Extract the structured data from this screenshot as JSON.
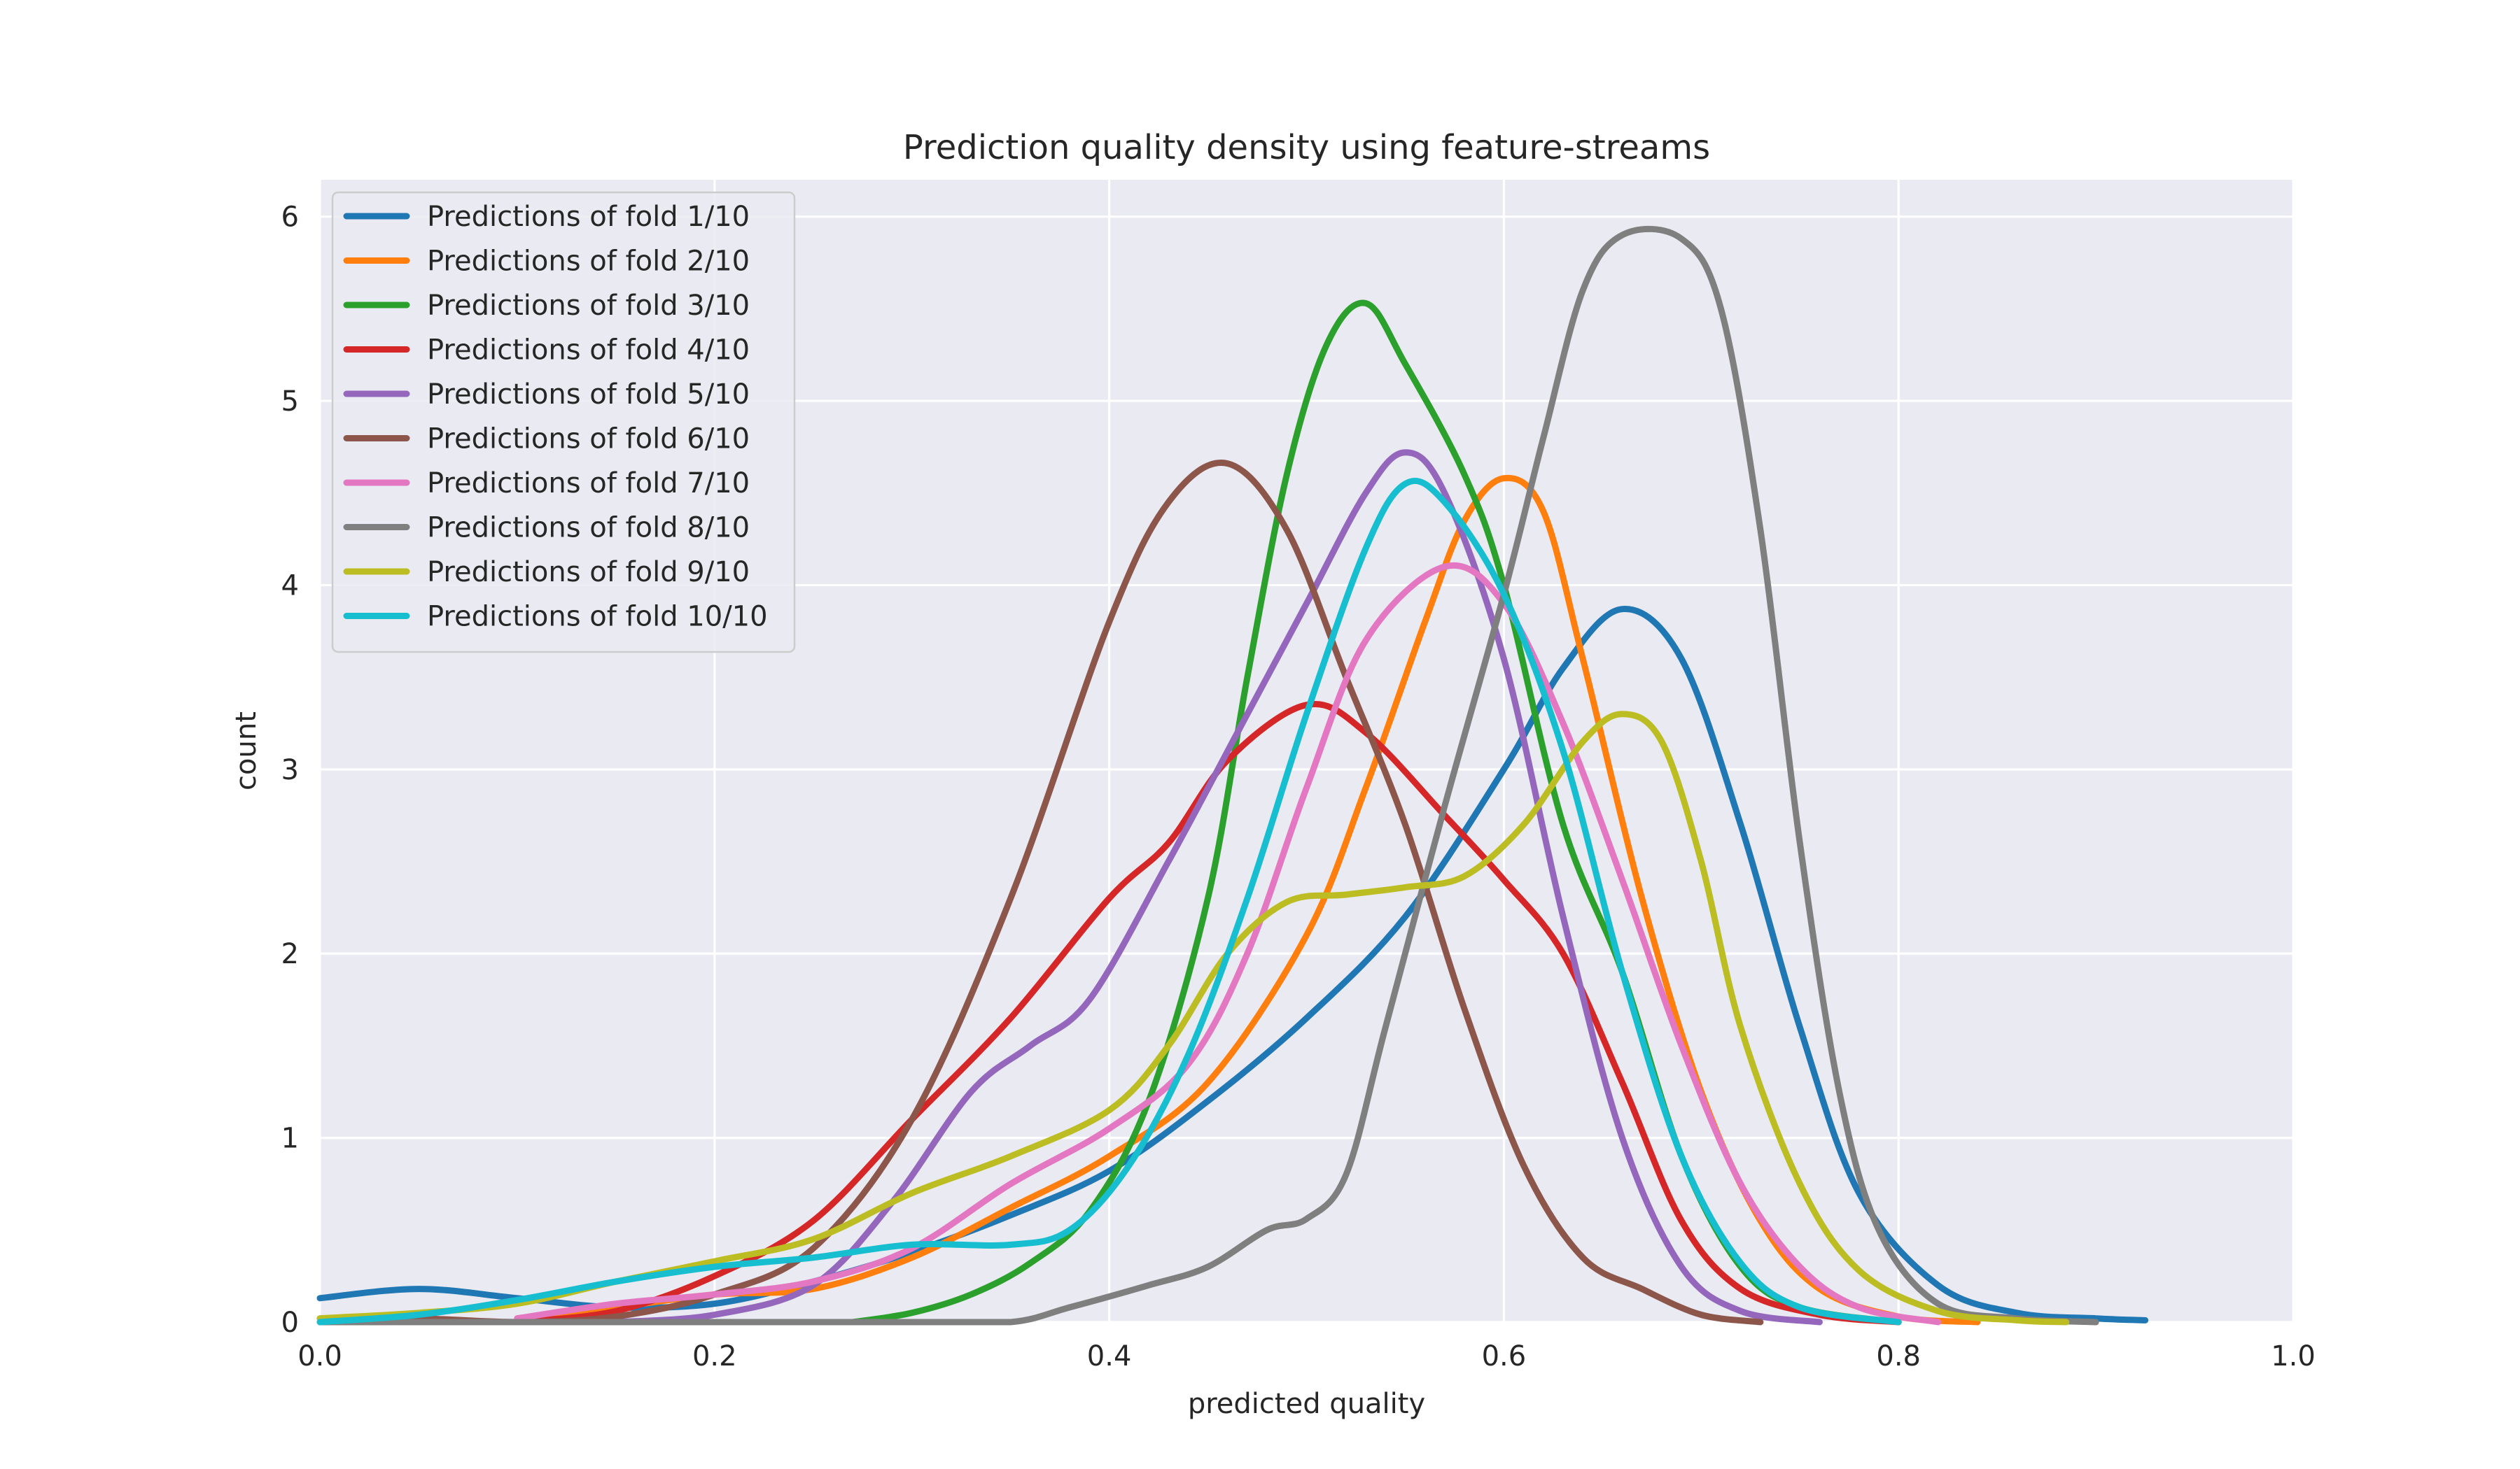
{
  "chart_data": {
    "type": "line",
    "title": "Prediction quality density using feature-streams",
    "xlabel": "predicted quality",
    "ylabel": "count",
    "xlim": [
      0.0,
      1.0
    ],
    "ylim": [
      0,
      6.2
    ],
    "xticks": [
      0.0,
      0.2,
      0.4,
      0.6,
      0.8,
      1.0
    ],
    "xtick_labels": [
      "0.0",
      "0.2",
      "0.4",
      "0.6",
      "0.8",
      "1.0"
    ],
    "yticks": [
      0,
      1,
      2,
      3,
      4,
      5,
      6
    ],
    "ytick_labels": [
      "0",
      "1",
      "2",
      "3",
      "4",
      "5",
      "6"
    ],
    "grid": true,
    "legend_position": "upper-left",
    "series": [
      {
        "name": "Predictions of fold 1/10",
        "color": "#1f77b4",
        "points": [
          [
            0.0,
            0.13
          ],
          [
            0.05,
            0.18
          ],
          [
            0.1,
            0.13
          ],
          [
            0.15,
            0.08
          ],
          [
            0.2,
            0.1
          ],
          [
            0.25,
            0.22
          ],
          [
            0.3,
            0.38
          ],
          [
            0.35,
            0.58
          ],
          [
            0.4,
            0.82
          ],
          [
            0.45,
            1.2
          ],
          [
            0.5,
            1.65
          ],
          [
            0.55,
            2.2
          ],
          [
            0.6,
            3.0
          ],
          [
            0.63,
            3.55
          ],
          [
            0.66,
            3.87
          ],
          [
            0.69,
            3.6
          ],
          [
            0.72,
            2.7
          ],
          [
            0.75,
            1.6
          ],
          [
            0.78,
            0.7
          ],
          [
            0.82,
            0.2
          ],
          [
            0.86,
            0.05
          ],
          [
            0.9,
            0.02
          ],
          [
            0.925,
            0.01
          ]
        ]
      },
      {
        "name": "Predictions of fold 2/10",
        "color": "#ff7f0e",
        "points": [
          [
            0.1,
            0.02
          ],
          [
            0.15,
            0.08
          ],
          [
            0.2,
            0.15
          ],
          [
            0.25,
            0.18
          ],
          [
            0.3,
            0.35
          ],
          [
            0.35,
            0.62
          ],
          [
            0.4,
            0.9
          ],
          [
            0.45,
            1.3
          ],
          [
            0.5,
            2.1
          ],
          [
            0.53,
            2.9
          ],
          [
            0.56,
            3.8
          ],
          [
            0.58,
            4.35
          ],
          [
            0.6,
            4.58
          ],
          [
            0.62,
            4.4
          ],
          [
            0.64,
            3.6
          ],
          [
            0.67,
            2.3
          ],
          [
            0.7,
            1.25
          ],
          [
            0.73,
            0.55
          ],
          [
            0.76,
            0.18
          ],
          [
            0.8,
            0.03
          ],
          [
            0.84,
            0.0
          ]
        ]
      },
      {
        "name": "Predictions of fold 3/10",
        "color": "#2ca02c",
        "points": [
          [
            0.27,
            0.0
          ],
          [
            0.3,
            0.05
          ],
          [
            0.33,
            0.15
          ],
          [
            0.36,
            0.32
          ],
          [
            0.39,
            0.6
          ],
          [
            0.42,
            1.2
          ],
          [
            0.45,
            2.3
          ],
          [
            0.47,
            3.5
          ],
          [
            0.49,
            4.6
          ],
          [
            0.51,
            5.3
          ],
          [
            0.53,
            5.53
          ],
          [
            0.55,
            5.2
          ],
          [
            0.58,
            4.6
          ],
          [
            0.6,
            4.0
          ],
          [
            0.63,
            2.7
          ],
          [
            0.66,
            1.9
          ],
          [
            0.69,
            0.9
          ],
          [
            0.72,
            0.3
          ],
          [
            0.75,
            0.08
          ],
          [
            0.8,
            0.0
          ]
        ]
      },
      {
        "name": "Predictions of fold 4/10",
        "color": "#d62728",
        "points": [
          [
            0.1,
            0.0
          ],
          [
            0.15,
            0.06
          ],
          [
            0.2,
            0.25
          ],
          [
            0.25,
            0.55
          ],
          [
            0.3,
            1.1
          ],
          [
            0.35,
            1.65
          ],
          [
            0.4,
            2.3
          ],
          [
            0.43,
            2.6
          ],
          [
            0.46,
            3.05
          ],
          [
            0.5,
            3.35
          ],
          [
            0.53,
            3.2
          ],
          [
            0.57,
            2.75
          ],
          [
            0.6,
            2.4
          ],
          [
            0.63,
            2.0
          ],
          [
            0.66,
            1.3
          ],
          [
            0.69,
            0.55
          ],
          [
            0.72,
            0.18
          ],
          [
            0.76,
            0.04
          ],
          [
            0.8,
            0.0
          ]
        ]
      },
      {
        "name": "Predictions of fold 5/10",
        "color": "#9467bd",
        "points": [
          [
            0.15,
            0.0
          ],
          [
            0.2,
            0.04
          ],
          [
            0.25,
            0.2
          ],
          [
            0.29,
            0.65
          ],
          [
            0.33,
            1.25
          ],
          [
            0.36,
            1.5
          ],
          [
            0.39,
            1.75
          ],
          [
            0.43,
            2.5
          ],
          [
            0.47,
            3.3
          ],
          [
            0.5,
            3.9
          ],
          [
            0.53,
            4.5
          ],
          [
            0.55,
            4.72
          ],
          [
            0.57,
            4.5
          ],
          [
            0.6,
            3.6
          ],
          [
            0.63,
            2.2
          ],
          [
            0.66,
            1.0
          ],
          [
            0.69,
            0.3
          ],
          [
            0.72,
            0.06
          ],
          [
            0.76,
            0.0
          ]
        ]
      },
      {
        "name": "Predictions of fold 6/10",
        "color": "#8c564b",
        "points": [
          [
            0.0,
            0.02
          ],
          [
            0.05,
            0.02
          ],
          [
            0.1,
            0.0
          ],
          [
            0.15,
            0.03
          ],
          [
            0.2,
            0.15
          ],
          [
            0.25,
            0.4
          ],
          [
            0.3,
            1.1
          ],
          [
            0.35,
            2.3
          ],
          [
            0.4,
            3.8
          ],
          [
            0.43,
            4.45
          ],
          [
            0.46,
            4.66
          ],
          [
            0.49,
            4.3
          ],
          [
            0.52,
            3.5
          ],
          [
            0.55,
            2.7
          ],
          [
            0.58,
            1.7
          ],
          [
            0.61,
            0.85
          ],
          [
            0.64,
            0.35
          ],
          [
            0.67,
            0.18
          ],
          [
            0.7,
            0.04
          ],
          [
            0.73,
            0.0
          ]
        ]
      },
      {
        "name": "Predictions of fold 7/10",
        "color": "#e377c2",
        "points": [
          [
            0.1,
            0.02
          ],
          [
            0.15,
            0.1
          ],
          [
            0.2,
            0.15
          ],
          [
            0.25,
            0.22
          ],
          [
            0.3,
            0.4
          ],
          [
            0.35,
            0.75
          ],
          [
            0.4,
            1.05
          ],
          [
            0.44,
            1.4
          ],
          [
            0.47,
            2.0
          ],
          [
            0.5,
            2.9
          ],
          [
            0.53,
            3.7
          ],
          [
            0.57,
            4.1
          ],
          [
            0.6,
            3.9
          ],
          [
            0.63,
            3.25
          ],
          [
            0.66,
            2.4
          ],
          [
            0.69,
            1.5
          ],
          [
            0.72,
            0.75
          ],
          [
            0.75,
            0.3
          ],
          [
            0.78,
            0.08
          ],
          [
            0.82,
            0.0
          ]
        ]
      },
      {
        "name": "Predictions of fold 8/10",
        "color": "#7f7f7f",
        "points": [
          [
            0.0,
            0.0
          ],
          [
            0.1,
            0.0
          ],
          [
            0.2,
            0.0
          ],
          [
            0.3,
            0.0
          ],
          [
            0.35,
            0.0
          ],
          [
            0.38,
            0.08
          ],
          [
            0.42,
            0.2
          ],
          [
            0.45,
            0.3
          ],
          [
            0.48,
            0.5
          ],
          [
            0.5,
            0.56
          ],
          [
            0.52,
            0.8
          ],
          [
            0.54,
            1.6
          ],
          [
            0.57,
            2.8
          ],
          [
            0.6,
            3.95
          ],
          [
            0.62,
            4.8
          ],
          [
            0.64,
            5.6
          ],
          [
            0.66,
            5.9
          ],
          [
            0.69,
            5.88
          ],
          [
            0.71,
            5.5
          ],
          [
            0.73,
            4.3
          ],
          [
            0.75,
            2.6
          ],
          [
            0.77,
            1.25
          ],
          [
            0.79,
            0.5
          ],
          [
            0.82,
            0.1
          ],
          [
            0.86,
            0.02
          ],
          [
            0.9,
            0.0
          ]
        ]
      },
      {
        "name": "Predictions of fold 9/10",
        "color": "#bcbd22",
        "points": [
          [
            0.0,
            0.02
          ],
          [
            0.05,
            0.05
          ],
          [
            0.1,
            0.1
          ],
          [
            0.15,
            0.22
          ],
          [
            0.2,
            0.33
          ],
          [
            0.25,
            0.45
          ],
          [
            0.3,
            0.7
          ],
          [
            0.35,
            0.9
          ],
          [
            0.4,
            1.15
          ],
          [
            0.43,
            1.5
          ],
          [
            0.46,
            2.0
          ],
          [
            0.49,
            2.28
          ],
          [
            0.52,
            2.32
          ],
          [
            0.55,
            2.36
          ],
          [
            0.58,
            2.42
          ],
          [
            0.61,
            2.7
          ],
          [
            0.64,
            3.15
          ],
          [
            0.66,
            3.3
          ],
          [
            0.68,
            3.15
          ],
          [
            0.7,
            2.5
          ],
          [
            0.72,
            1.6
          ],
          [
            0.75,
            0.75
          ],
          [
            0.78,
            0.28
          ],
          [
            0.82,
            0.06
          ],
          [
            0.86,
            0.01
          ],
          [
            0.885,
            0.0
          ]
        ]
      },
      {
        "name": "Predictions of fold 10/10",
        "color": "#17becf",
        "points": [
          [
            0.0,
            0.0
          ],
          [
            0.05,
            0.04
          ],
          [
            0.1,
            0.12
          ],
          [
            0.15,
            0.22
          ],
          [
            0.2,
            0.3
          ],
          [
            0.25,
            0.35
          ],
          [
            0.3,
            0.42
          ],
          [
            0.35,
            0.42
          ],
          [
            0.38,
            0.5
          ],
          [
            0.41,
            0.85
          ],
          [
            0.44,
            1.45
          ],
          [
            0.47,
            2.3
          ],
          [
            0.5,
            3.3
          ],
          [
            0.53,
            4.2
          ],
          [
            0.55,
            4.55
          ],
          [
            0.57,
            4.45
          ],
          [
            0.6,
            3.95
          ],
          [
            0.63,
            3.1
          ],
          [
            0.66,
            1.9
          ],
          [
            0.69,
            0.9
          ],
          [
            0.72,
            0.32
          ],
          [
            0.75,
            0.08
          ],
          [
            0.8,
            0.0
          ]
        ]
      }
    ]
  }
}
